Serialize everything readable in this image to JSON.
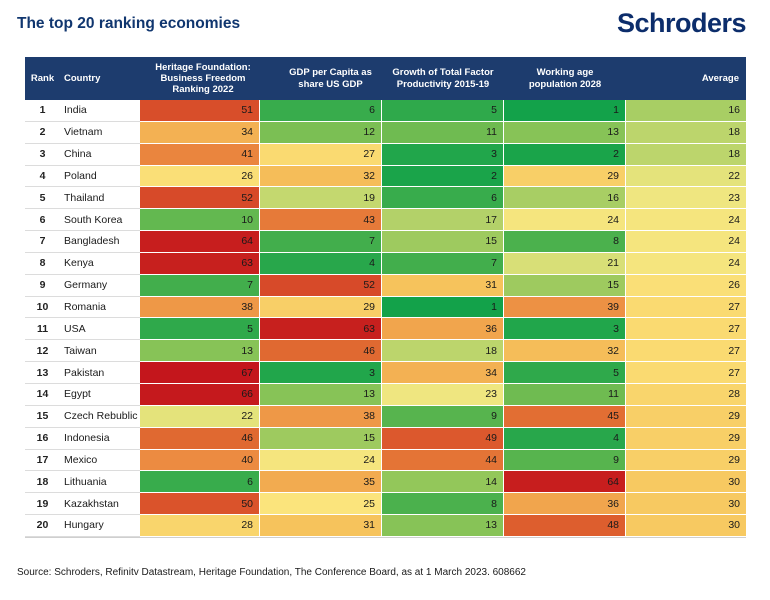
{
  "page": {
    "title": "The top 20 ranking economies",
    "logo": "Schroders",
    "source": "Source: Schroders, Refinitv Datastream, Heritage Foundation, The Conference Board, as at 1 March 2023. 608662"
  },
  "colors": {
    "brand_navy": "#0c2d6b",
    "title_navy": "#10366f",
    "header_bar": "#1d3c6e",
    "header_text": "#ffffff",
    "cell_text": "#1a1a1a",
    "row_divider": "#dcdcdc"
  },
  "chart_data": {
    "type": "table",
    "title": "The top 20 ranking economies",
    "columns": [
      "Rank",
      "Country",
      "Heritage Foundation: Business Freedom Ranking 2022",
      "GDP per Capita as share US GDP",
      "Growth of Total Factor Productivity 2015-19",
      "Working age population 2028",
      "Average"
    ],
    "rows": [
      {
        "rank": "1",
        "country": "India",
        "values": [
          51,
          6,
          5,
          1,
          16
        ]
      },
      {
        "rank": "2",
        "country": "Vietnam",
        "values": [
          34,
          12,
          11,
          13,
          18
        ]
      },
      {
        "rank": "3",
        "country": "China",
        "values": [
          41,
          27,
          3,
          2,
          18
        ]
      },
      {
        "rank": "4",
        "country": "Poland",
        "values": [
          26,
          32,
          2,
          29,
          22
        ]
      },
      {
        "rank": "5",
        "country": "Thailand",
        "values": [
          52,
          19,
          6,
          16,
          23
        ]
      },
      {
        "rank": "6",
        "country": "South Korea",
        "values": [
          10,
          43,
          17,
          24,
          24
        ]
      },
      {
        "rank": "7",
        "country": "Bangladesh",
        "values": [
          64,
          7,
          15,
          8,
          24
        ]
      },
      {
        "rank": "8",
        "country": "Kenya",
        "values": [
          63,
          4,
          7,
          21,
          24
        ]
      },
      {
        "rank": "9",
        "country": "Germany",
        "values": [
          7,
          52,
          31,
          15,
          26
        ]
      },
      {
        "rank": "10",
        "country": "Romania",
        "values": [
          38,
          29,
          1,
          39,
          27
        ]
      },
      {
        "rank": "11",
        "country": "USA",
        "values": [
          5,
          63,
          36,
          3,
          27
        ]
      },
      {
        "rank": "12",
        "country": "Taiwan",
        "values": [
          13,
          46,
          18,
          32,
          27
        ]
      },
      {
        "rank": "13",
        "country": "Pakistan",
        "values": [
          67,
          3,
          34,
          5,
          27
        ]
      },
      {
        "rank": "14",
        "country": "Egypt",
        "values": [
          66,
          13,
          23,
          11,
          28
        ]
      },
      {
        "rank": "15",
        "country": "Czech Rebublic",
        "values": [
          22,
          38,
          9,
          45,
          29
        ]
      },
      {
        "rank": "16",
        "country": "Indonesia",
        "values": [
          46,
          15,
          49,
          4,
          29
        ]
      },
      {
        "rank": "17",
        "country": "Mexico",
        "values": [
          40,
          24,
          44,
          9,
          29
        ]
      },
      {
        "rank": "18",
        "country": "Lithuania",
        "values": [
          6,
          35,
          14,
          64,
          30
        ]
      },
      {
        "rank": "19",
        "country": "Kazakhstan",
        "values": [
          50,
          25,
          8,
          36,
          30
        ]
      },
      {
        "rank": "20",
        "country": "Hungary",
        "values": [
          28,
          31,
          13,
          48,
          30
        ]
      }
    ],
    "color_scale": [
      [
        1,
        "#13a24a"
      ],
      [
        5,
        "#2fa94b"
      ],
      [
        8,
        "#4bb14d"
      ],
      [
        11,
        "#6fbb51"
      ],
      [
        14,
        "#93c75a"
      ],
      [
        17,
        "#b3d169"
      ],
      [
        20,
        "#cddc72"
      ],
      [
        23,
        "#efe680"
      ],
      [
        25,
        "#fbe47c"
      ],
      [
        28,
        "#f9d56c"
      ],
      [
        31,
        "#f6c35c"
      ],
      [
        35,
        "#f2ab50"
      ],
      [
        40,
        "#ec8b41"
      ],
      [
        45,
        "#e26e33"
      ],
      [
        50,
        "#da532b"
      ],
      [
        55,
        "#d23c25"
      ],
      [
        60,
        "#ca2820"
      ],
      [
        67,
        "#c4161c"
      ]
    ]
  }
}
